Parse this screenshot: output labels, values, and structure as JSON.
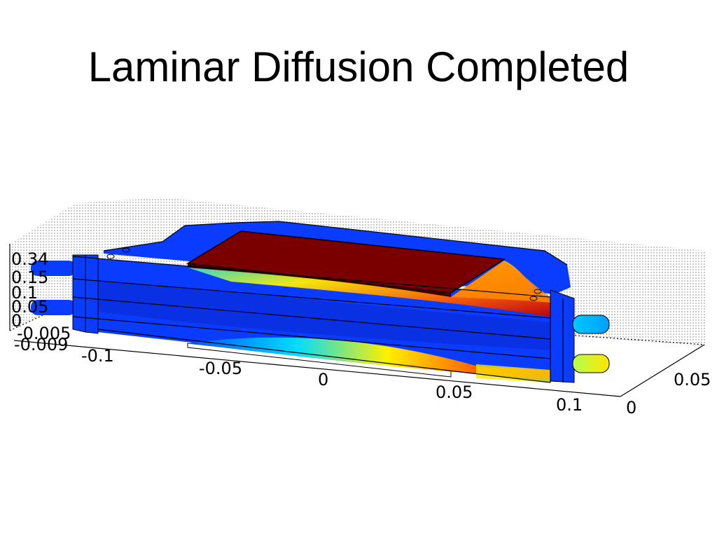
{
  "slide": {
    "title": "Laminar Diffusion Completed"
  },
  "figure": {
    "z_ticks": [
      "0.34",
      "0.15",
      "0.1",
      "0.05",
      "0",
      "-0.005",
      "-0.009"
    ],
    "x_ticks": [
      "-0.1",
      "-0.05",
      "0",
      "0.05",
      "0.1"
    ],
    "y_ticks": [
      "0",
      "0.05"
    ]
  },
  "colors": {
    "background": "#ffffff",
    "cold": "#0a3cff",
    "hot": "#8b0a0a",
    "gradient": [
      "#0000c8",
      "#0078ff",
      "#00dcff",
      "#fff000",
      "#ff8000",
      "#d20000",
      "#7a0000"
    ]
  }
}
